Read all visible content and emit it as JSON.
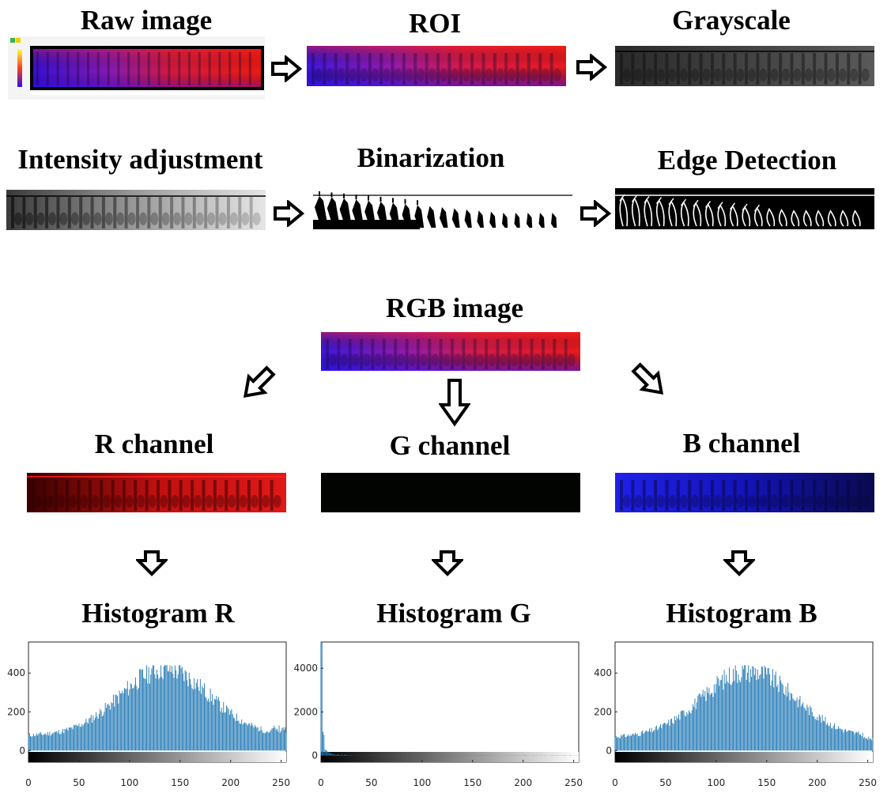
{
  "pipeline": {
    "raw_image": "Raw image",
    "roi": "ROI",
    "grayscale": "Grayscale",
    "intensity_adjustment": "Intensity adjustment",
    "binarization": "Binarization",
    "edge_detection": "Edge Detection",
    "rgb_image": "RGB image"
  },
  "channels": {
    "r": "R channel",
    "g": "G channel",
    "b": "B channel"
  },
  "histograms": {
    "r": "Histogram R",
    "g": "Histogram G",
    "b": "Histogram B"
  },
  "colors": {
    "accent_red": "#e41414",
    "accent_blue": "#2a1ae6",
    "bar_blue": "#1f77b4"
  },
  "chart_data": [
    {
      "type": "bar",
      "title": "Histogram R",
      "xlim": [
        0,
        255
      ],
      "ylim": [
        -60,
        560
      ],
      "x_ticks": [
        0,
        50,
        100,
        150,
        200,
        250
      ],
      "y_ticks": [
        0,
        200,
        400
      ],
      "peak_value": 440,
      "peak_x": 135,
      "distribution": "bell-shaped, low ends (~80 at x=0, ~100 at x=255)"
    },
    {
      "type": "bar",
      "title": "Histogram G",
      "xlim": [
        0,
        255
      ],
      "ylim": [
        -300,
        5200
      ],
      "x_ticks": [
        0,
        50,
        100,
        150,
        200,
        250
      ],
      "y_ticks": [
        0,
        2000,
        4000
      ],
      "peak_value": 5200,
      "peak_x": 2,
      "distribution": "sharp spike near 0 decaying to ~0 by x=30"
    },
    {
      "type": "bar",
      "title": "Histogram B",
      "xlim": [
        0,
        255
      ],
      "ylim": [
        -60,
        560
      ],
      "x_ticks": [
        0,
        50,
        100,
        150,
        200,
        250
      ],
      "y_ticks": [
        0,
        200,
        400
      ],
      "peak_value": 440,
      "peak_x": 135,
      "distribution": "bell-shaped, ends ~100 at x=0 and ~60 at x=255"
    }
  ]
}
